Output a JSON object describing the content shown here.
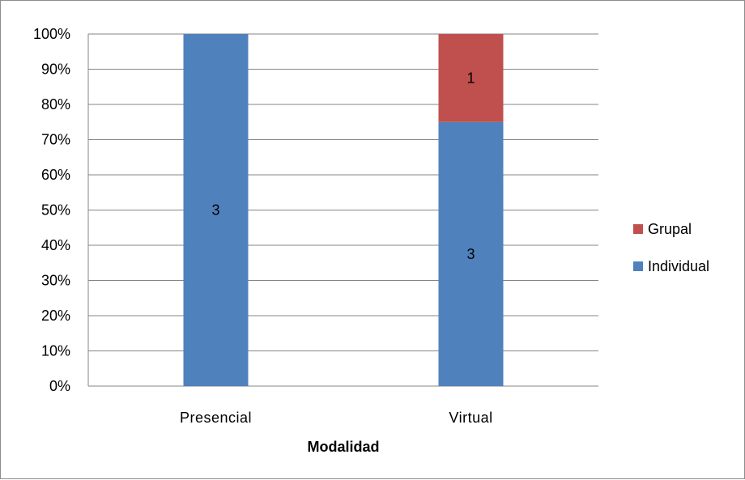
{
  "chart_data": {
    "type": "bar",
    "stacked": "percent",
    "categories": [
      "Presencial",
      "Virtual"
    ],
    "series": [
      {
        "name": "Individual",
        "values": [
          3,
          3
        ],
        "color": "#4f81bd"
      },
      {
        "name": "Grupal",
        "values": [
          0,
          1
        ],
        "color": "#c0504d"
      }
    ],
    "data_labels": [
      [
        "3",
        "3"
      ],
      [
        "",
        "1"
      ]
    ],
    "xlabel": "Modalidad",
    "ylabel": "",
    "yticks": [
      "0%",
      "10%",
      "20%",
      "30%",
      "40%",
      "50%",
      "60%",
      "70%",
      "80%",
      "90%",
      "100%"
    ],
    "ylim": [
      0,
      100
    ],
    "grid": true,
    "legend_position": "right"
  }
}
